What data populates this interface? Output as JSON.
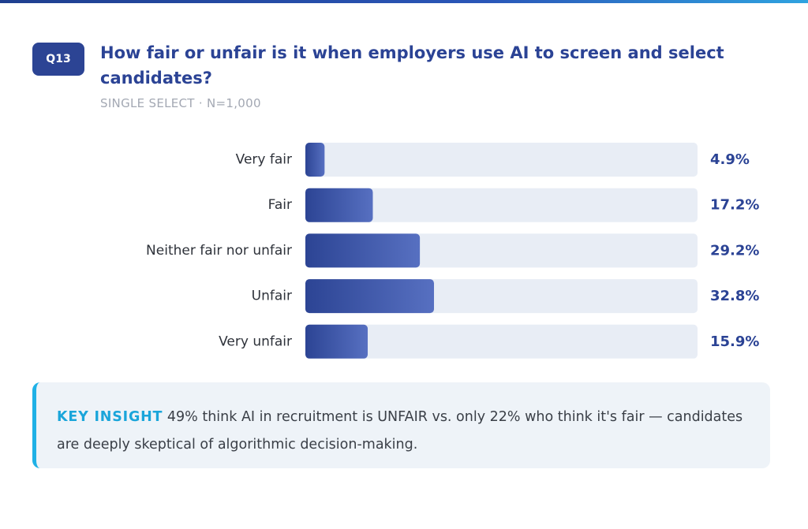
{
  "question_badge": "Q13",
  "title": "How fair or unfair is it when employers use AI to screen and select candidates?",
  "subtitle": "SINGLE SELECT · N=1,000",
  "chart_data": {
    "type": "bar",
    "orientation": "horizontal",
    "categories": [
      "Very fair",
      "Fair",
      "Neither fair nor unfair",
      "Unfair",
      "Very unfair"
    ],
    "values": [
      4.9,
      17.2,
      29.2,
      32.8,
      15.9
    ],
    "value_labels": [
      "4.9%",
      "17.2%",
      "29.2%",
      "32.8%",
      "15.9%"
    ],
    "xlim": [
      0,
      100
    ],
    "unit": "%",
    "grid": false,
    "legend": "none"
  },
  "insight": {
    "label": "KEY INSIGHT",
    "text": "49% think AI in recruitment is UNFAIR vs. only 22% who think it's fair — candidates are deeply skeptical of algorithmic decision-making."
  },
  "colors": {
    "bar_start": "#2c4494",
    "bar_end": "#5770c1",
    "track": "#e8edf5",
    "accent": "#2b4395",
    "insight_accent": "#1fb1e6"
  }
}
